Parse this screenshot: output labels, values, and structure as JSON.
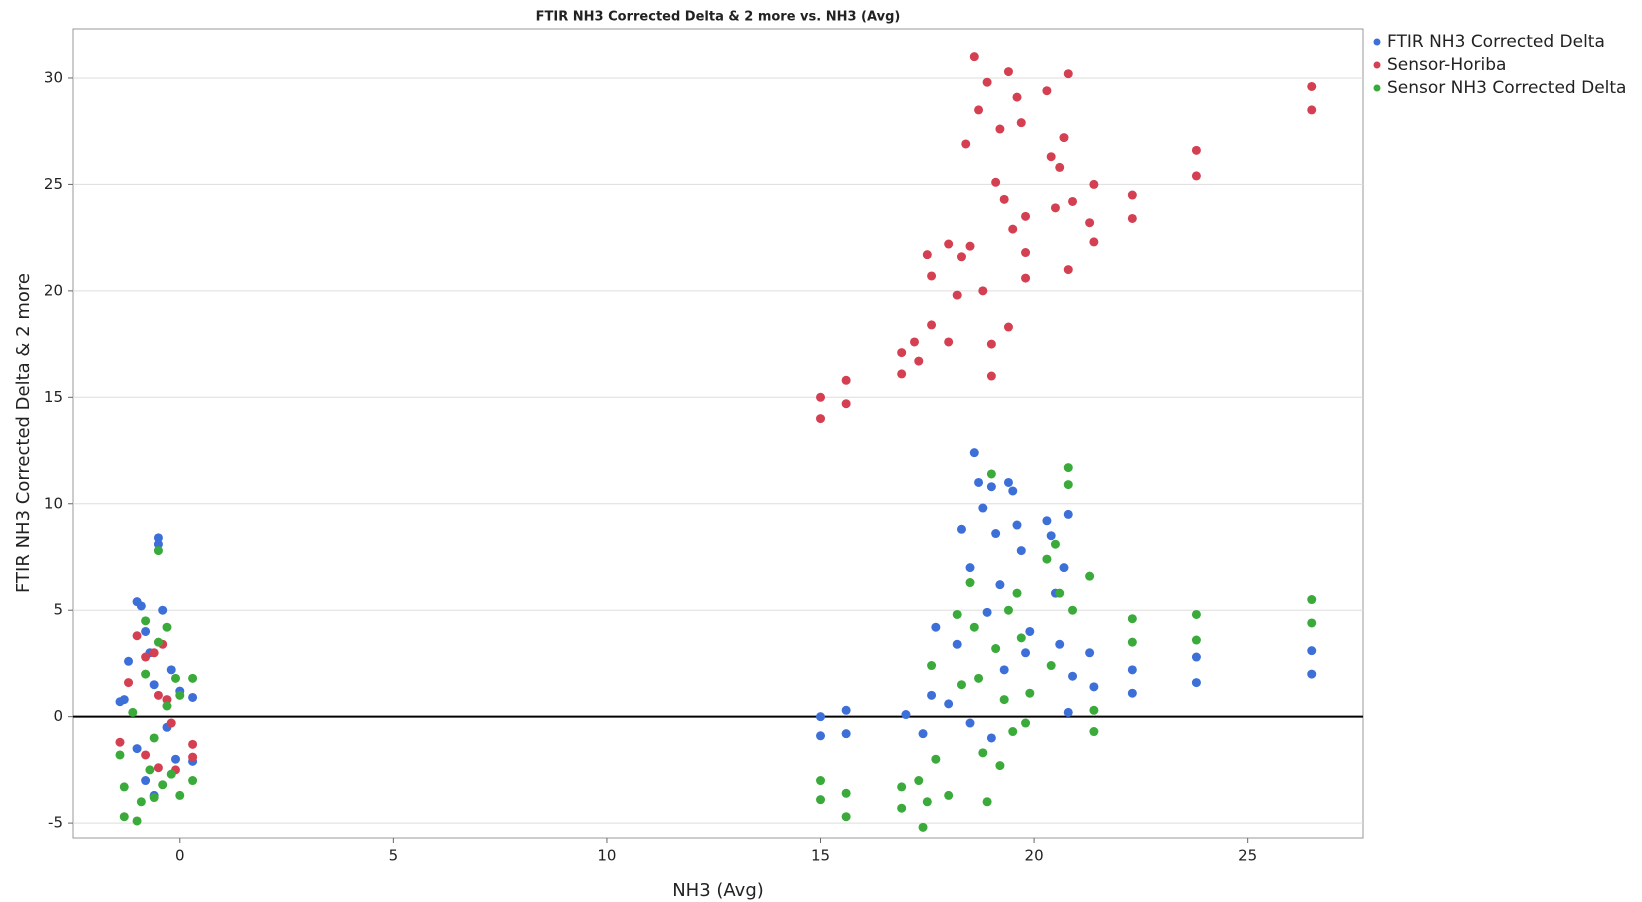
{
  "chart_data": {
    "type": "scatter",
    "title": "FTIR NH3 Corrected Delta & 2 more vs. NH3 (Avg)",
    "x_label": "NH3 (Avg)",
    "y_label": "FTIR NH3 Corrected Delta & 2 more",
    "xlim": [
      -2.5,
      27.7
    ],
    "ylim": [
      -5.7,
      32.3
    ],
    "xticks": [
      0,
      5,
      10,
      15,
      20,
      25
    ],
    "yticks": [
      -5,
      0,
      5,
      10,
      15,
      20,
      25,
      30
    ],
    "grid": true,
    "legend": "right",
    "series": [
      {
        "name": "FTIR NH3 Corrected Delta",
        "color": "#3d6fd8",
        "x": [
          -1.4,
          -1.3,
          -1.2,
          -1.0,
          -0.9,
          -0.8,
          -0.7,
          -0.6,
          -0.5,
          -0.5,
          -0.4,
          -0.3,
          -0.2,
          -0.1,
          0,
          0.3,
          0.3,
          -1.0,
          -0.8,
          -0.6,
          15,
          15,
          15.6,
          15.6,
          17,
          17.4,
          17.6,
          17.7,
          18.0,
          18.2,
          18.3,
          18.5,
          18.6,
          18.7,
          18.8,
          18.9,
          19.0,
          19.1,
          19.2,
          19.3,
          19.4,
          19.5,
          19.6,
          19.7,
          19.8,
          19.9,
          20.3,
          20.4,
          20.5,
          20.6,
          20.7,
          20.8,
          20.8,
          20.9,
          21.3,
          21.4,
          22.3,
          22.3,
          23.8,
          23.8,
          26.5,
          26.5,
          19.0,
          18.5
        ],
        "y": [
          0.7,
          0.8,
          2.6,
          5.4,
          5.2,
          4.0,
          3.0,
          1.5,
          8.4,
          8.1,
          5.0,
          -0.5,
          2.2,
          -2.0,
          1.2,
          0.9,
          -2.1,
          -1.5,
          -3.0,
          -3.7,
          0,
          -0.9,
          0.3,
          -0.8,
          0.1,
          -0.8,
          1.0,
          4.2,
          0.6,
          3.4,
          8.8,
          7.0,
          12.4,
          11.0,
          9.8,
          4.9,
          10.8,
          8.6,
          6.2,
          2.2,
          11.0,
          10.6,
          9.0,
          7.8,
          3.0,
          4.0,
          9.2,
          8.5,
          5.8,
          3.4,
          7.0,
          9.5,
          0.2,
          1.9,
          3.0,
          1.4,
          2.2,
          1.1,
          2.8,
          1.6,
          3.1,
          2.0,
          -1.0,
          -0.3
        ]
      },
      {
        "name": "Sensor-Horiba",
        "color": "#d44052",
        "x": [
          -1.4,
          -1.2,
          -1.0,
          -0.8,
          -0.6,
          -0.5,
          -0.4,
          -0.3,
          -0.2,
          -0.1,
          0.3,
          0.3,
          -0.8,
          -0.5,
          15,
          15,
          15.6,
          15.6,
          16.9,
          16.9,
          17.2,
          17.3,
          17.5,
          17.6,
          17.6,
          18.0,
          18.0,
          18.2,
          18.3,
          18.4,
          18.5,
          18.6,
          18.7,
          18.8,
          18.9,
          19.0,
          19.0,
          19.1,
          19.2,
          19.3,
          19.4,
          19.4,
          19.5,
          19.6,
          19.7,
          19.8,
          19.8,
          19.8,
          20.3,
          20.4,
          20.5,
          20.6,
          20.7,
          20.8,
          20.8,
          20.9,
          21.3,
          21.4,
          21.4,
          22.3,
          22.3,
          23.8,
          23.8,
          26.5,
          26.5
        ],
        "y": [
          -1.2,
          1.6,
          3.8,
          2.8,
          3.0,
          1.0,
          3.4,
          0.8,
          -0.3,
          -2.5,
          -1.3,
          -1.9,
          -1.8,
          -2.4,
          15,
          14,
          15.8,
          14.7,
          16.1,
          17.1,
          17.6,
          16.7,
          21.7,
          20.7,
          18.4,
          22.2,
          17.6,
          19.8,
          21.6,
          26.9,
          22.1,
          31.0,
          28.5,
          20.0,
          29.8,
          17.5,
          16.0,
          25.1,
          27.6,
          24.3,
          18.3,
          30.3,
          22.9,
          29.1,
          27.9,
          23.5,
          21.8,
          20.6,
          29.4,
          26.3,
          23.9,
          25.8,
          27.2,
          30.2,
          21.0,
          24.2,
          23.2,
          25.0,
          22.3,
          24.5,
          23.4,
          26.6,
          25.4,
          29.6,
          28.5
        ]
      },
      {
        "name": "Sensor NH3 Corrected Delta",
        "color": "#3aaa3a",
        "x": [
          -1.4,
          -1.3,
          -1.3,
          -1.1,
          -1.0,
          -0.9,
          -0.8,
          -0.8,
          -0.7,
          -0.6,
          -0.5,
          -0.5,
          -0.4,
          -0.3,
          -0.2,
          -0.1,
          0,
          0,
          0.3,
          0.3,
          -0.6,
          -0.3,
          15,
          15,
          15.6,
          15.6,
          16.9,
          16.9,
          17.3,
          17.4,
          17.5,
          17.6,
          17.7,
          18.0,
          18.2,
          18.3,
          18.5,
          18.6,
          18.7,
          18.8,
          18.9,
          19.0,
          19.1,
          19.2,
          19.3,
          19.4,
          19.5,
          19.6,
          19.7,
          19.8,
          19.9,
          20.3,
          20.4,
          20.5,
          20.6,
          20.8,
          20.8,
          20.9,
          21.3,
          21.4,
          21.4,
          22.3,
          22.3,
          23.8,
          23.8,
          26.5,
          26.5
        ],
        "y": [
          -1.8,
          -3.3,
          -4.7,
          0.2,
          -4.9,
          -4.0,
          4.5,
          2.0,
          -2.5,
          -1.0,
          7.8,
          3.5,
          -3.2,
          0.5,
          -2.7,
          1.8,
          -3.7,
          1.0,
          1.8,
          -3.0,
          -3.8,
          4.2,
          -3,
          -3.9,
          -3.6,
          -4.7,
          -3.3,
          -4.3,
          -3.0,
          -5.2,
          -4.0,
          2.4,
          -2.0,
          -3.7,
          4.8,
          1.5,
          6.3,
          4.2,
          1.8,
          -1.7,
          -4.0,
          11.4,
          3.2,
          -2.3,
          0.8,
          5.0,
          -0.7,
          5.8,
          3.7,
          -0.3,
          1.1,
          7.4,
          2.4,
          8.1,
          5.8,
          11.7,
          10.9,
          5.0,
          6.6,
          0.3,
          -0.7,
          4.6,
          3.5,
          4.8,
          3.6,
          5.5,
          4.4
        ]
      }
    ]
  }
}
